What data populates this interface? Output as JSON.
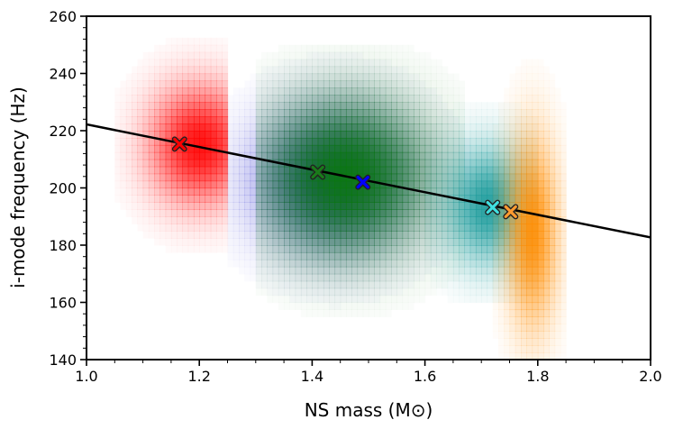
{
  "chart_data": {
    "type": "heatmap",
    "xlabel": "NS mass (M⊙)",
    "ylabel": "i-mode frequency (Hz)",
    "xlim": [
      1.0,
      2.0
    ],
    "ylim": [
      140,
      260
    ],
    "xticks": [
      "1.0",
      "1.2",
      "1.4",
      "1.6",
      "1.8",
      "2.0"
    ],
    "yticks": [
      "140",
      "160",
      "180",
      "200",
      "220",
      "240",
      "260"
    ],
    "fit_line": {
      "x": [
        1.0,
        2.0
      ],
      "y": [
        222.2,
        182.7
      ],
      "color": "#000000"
    },
    "distributions": [
      {
        "name": "red",
        "color": "#ff0000",
        "mass_range": [
          1.05,
          1.25
        ],
        "center": [
          1.2,
          215
        ],
        "spread": [
          0.06,
          14
        ],
        "freq_range": [
          170,
          255
        ]
      },
      {
        "name": "blue",
        "color": "#2222cc",
        "mass_range": [
          1.25,
          1.68
        ],
        "center": [
          1.44,
          203
        ],
        "spread": [
          0.09,
          16
        ],
        "freq_range": [
          150,
          250
        ]
      },
      {
        "name": "green",
        "color": "#0a7a0a",
        "mass_range": [
          1.3,
          1.67
        ],
        "center": [
          1.46,
          204
        ],
        "spread": [
          0.1,
          18
        ],
        "freq_range": [
          145,
          250
        ]
      },
      {
        "name": "teal",
        "color": "#1a9a9a",
        "mass_range": [
          1.6,
          1.8
        ],
        "center": [
          1.71,
          194
        ],
        "spread": [
          0.05,
          14
        ],
        "freq_range": [
          160,
          230
        ]
      },
      {
        "name": "orange",
        "color": "#ff8c00",
        "mass_range": [
          1.72,
          1.85
        ],
        "center": [
          1.79,
          185
        ],
        "spread": [
          0.03,
          22
        ],
        "freq_range": [
          140,
          258
        ]
      }
    ],
    "markers": [
      {
        "label": "red",
        "x": 1.165,
        "y": 215.3,
        "color": "#ff0000"
      },
      {
        "label": "green",
        "x": 1.41,
        "y": 205.5,
        "color": "#1a7a1a"
      },
      {
        "label": "blue",
        "x": 1.49,
        "y": 202.0,
        "color": "#0000ff"
      },
      {
        "label": "teal",
        "x": 1.72,
        "y": 193.2,
        "color": "#40e0e0"
      },
      {
        "label": "orange",
        "x": 1.752,
        "y": 191.7,
        "color": "#ff9a30"
      }
    ]
  }
}
